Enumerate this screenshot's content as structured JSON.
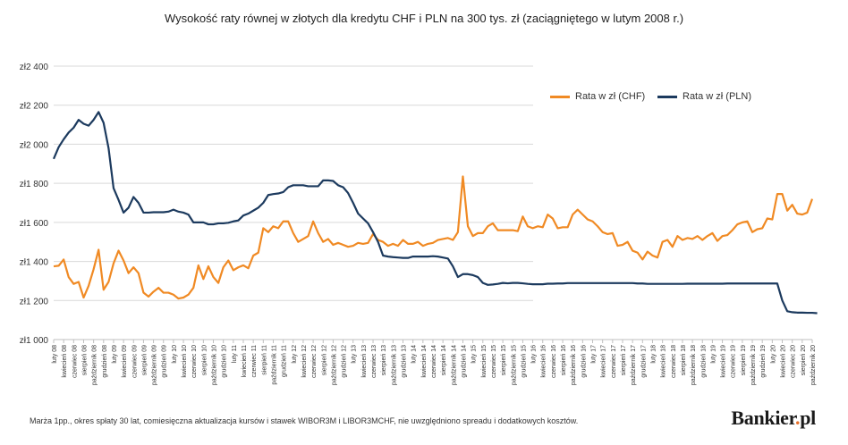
{
  "title": "Wysokość raty równej w złotych dla kredytu CHF i PLN na 300 tys. zł (zaciągniętego w lutym 2008 r.)",
  "footnote": "Marża 1pp., okres spłaty 30 lat, comiesięczna aktualizacja kursów i stawek WIBOR3M i LIBOR3MCHF, nie uwzględniono spreadu i dodatkowych kosztów.",
  "brand": {
    "name": "Bankier",
    "suffix": "pl",
    "separator": "."
  },
  "colors": {
    "chf": "#f08a24",
    "pln": "#1c3a5e",
    "grid": "#d9d9d9",
    "axis": "#bfbfbf"
  },
  "chart_data": {
    "type": "line",
    "title": "Wysokość raty równej w złotych dla kredytu CHF i PLN na 300 tys. zł (zaciągniętego w lutym 2008 r.)",
    "xlabel": "",
    "ylabel": "",
    "ylim": [
      1000,
      2400
    ],
    "yticks": [
      1000,
      1200,
      1400,
      1600,
      1800,
      2000,
      2200,
      2400
    ],
    "ytick_labels": [
      "zł1 000",
      "zł1 200",
      "zł1 400",
      "zł1 600",
      "zł1 800",
      "zł2 000",
      "zł2 200",
      "zł2 400"
    ],
    "grid": true,
    "legend_position": "top-right",
    "x_tick_labels": [
      "luty 08",
      "kwiecień 08",
      "czerwiec 08",
      "sierpień 08",
      "październik 08",
      "grudzień 08",
      "luty 09",
      "kwiecień 09",
      "czerwiec 09",
      "sierpień 09",
      "październik 09",
      "grudzień 09",
      "luty 10",
      "kwiecień 10",
      "czerwiec 10",
      "sierpień 10",
      "październik 10",
      "grudzień 10",
      "luty 11",
      "kwiecień 11",
      "czerwiec 11",
      "sierpień 11",
      "październik 11",
      "grudzień 11",
      "luty 12",
      "kwiecień 12",
      "czerwiec 12",
      "sierpień 12",
      "październik 12",
      "grudzień 12",
      "luty 13",
      "kwiecień 13",
      "czerwiec 13",
      "sierpień 13",
      "październik 13",
      "grudzień 13",
      "luty 14",
      "kwiecień 14",
      "czerwiec 14",
      "sierpień 14",
      "październik 14",
      "grudzień 14",
      "luty 15",
      "kwiecień 15",
      "czerwiec 15",
      "sierpień 15",
      "październik 15",
      "grudzień 15",
      "luty 16",
      "kwiecień 16",
      "czerwiec 16",
      "sierpień 16",
      "październik 16",
      "grudzień 16",
      "luty 17",
      "kwiecień 17",
      "czerwiec 17",
      "sierpień 17",
      "październik 17",
      "grudzień 17",
      "luty 18",
      "kwiecień 18",
      "czerwiec 18",
      "sierpień 18",
      "październik 18",
      "grudzień 18",
      "luty 19",
      "kwiecień 19",
      "czerwiec 19",
      "sierpień 19",
      "październik 19",
      "grudzień 19",
      "luty 20",
      "kwiecień 20",
      "czerwiec 20",
      "sierpień 20",
      "październik 20"
    ],
    "series": [
      {
        "name": "Rata w zł (CHF)",
        "color": "#f08a24",
        "values": [
          1375,
          1378,
          1410,
          1320,
          1285,
          1295,
          1215,
          1275,
          1360,
          1460,
          1255,
          1295,
          1390,
          1455,
          1405,
          1340,
          1370,
          1340,
          1240,
          1220,
          1245,
          1265,
          1240,
          1240,
          1230,
          1210,
          1215,
          1230,
          1265,
          1380,
          1310,
          1375,
          1320,
          1290,
          1370,
          1405,
          1355,
          1370,
          1380,
          1365,
          1430,
          1445,
          1570,
          1550,
          1580,
          1570,
          1605,
          1605,
          1545,
          1500,
          1515,
          1530,
          1605,
          1545,
          1500,
          1515,
          1485,
          1495,
          1485,
          1475,
          1480,
          1495,
          1490,
          1495,
          1540,
          1510,
          1500,
          1480,
          1490,
          1480,
          1510,
          1490,
          1490,
          1500,
          1480,
          1490,
          1495,
          1510,
          1515,
          1520,
          1510,
          1550,
          1835,
          1580,
          1530,
          1545,
          1545,
          1580,
          1595,
          1560,
          1560,
          1560,
          1560,
          1555,
          1630,
          1580,
          1570,
          1580,
          1575,
          1640,
          1620,
          1570,
          1575,
          1575,
          1640,
          1665,
          1640,
          1615,
          1605,
          1580,
          1550,
          1540,
          1545,
          1480,
          1485,
          1500,
          1455,
          1445,
          1410,
          1450,
          1430,
          1420,
          1500,
          1510,
          1475,
          1530,
          1510,
          1520,
          1515,
          1530,
          1510,
          1530,
          1545,
          1505,
          1530,
          1535,
          1560,
          1590,
          1600,
          1605,
          1550,
          1565,
          1570,
          1620,
          1615,
          1745,
          1745,
          1660,
          1690,
          1645,
          1640,
          1650,
          1720
        ]
      },
      {
        "name": "Rata w zł (PLN)",
        "color": "#1c3a5e",
        "values": [
          1925,
          1985,
          2025,
          2060,
          2085,
          2125,
          2105,
          2095,
          2125,
          2165,
          2110,
          1980,
          1775,
          1715,
          1650,
          1675,
          1730,
          1700,
          1650,
          1650,
          1652,
          1652,
          1652,
          1655,
          1665,
          1655,
          1650,
          1640,
          1600,
          1600,
          1600,
          1590,
          1590,
          1595,
          1595,
          1598,
          1605,
          1610,
          1635,
          1645,
          1660,
          1675,
          1700,
          1740,
          1745,
          1748,
          1755,
          1780,
          1790,
          1790,
          1790,
          1785,
          1785,
          1785,
          1815,
          1815,
          1812,
          1790,
          1780,
          1750,
          1700,
          1645,
          1620,
          1595,
          1550,
          1500,
          1430,
          1425,
          1422,
          1420,
          1418,
          1418,
          1425,
          1425,
          1425,
          1425,
          1427,
          1425,
          1420,
          1415,
          1375,
          1320,
          1335,
          1335,
          1330,
          1320,
          1290,
          1280,
          1282,
          1285,
          1290,
          1288,
          1290,
          1290,
          1288,
          1285,
          1283,
          1283,
          1283,
          1286,
          1286,
          1287,
          1287,
          1289,
          1289,
          1289,
          1289,
          1289,
          1289,
          1289,
          1289,
          1289,
          1289,
          1289,
          1289,
          1289,
          1289,
          1287,
          1287,
          1285,
          1285,
          1285,
          1285,
          1285,
          1285,
          1285,
          1285,
          1286,
          1286,
          1286,
          1286,
          1286,
          1286,
          1286,
          1286,
          1287,
          1287,
          1287,
          1287,
          1287,
          1287,
          1287,
          1287,
          1287,
          1287,
          1287,
          1200,
          1145,
          1140,
          1138,
          1138,
          1137,
          1137,
          1135
        ]
      }
    ]
  }
}
